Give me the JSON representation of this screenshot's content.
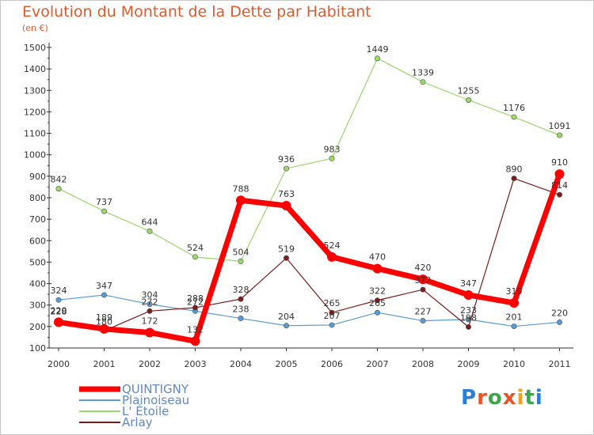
{
  "title": "Evolution du Montant de la Dette par Habitant",
  "unit": "(en €)",
  "logo": {
    "text": "Proxiti",
    "letter_colors": [
      "#2a7fd4",
      "#e8542a",
      "#3aa84a",
      "#e8542a",
      "#f2a020",
      "#3aa84a",
      "#2a7fd4"
    ]
  },
  "chart_data": {
    "type": "line",
    "x": [
      "2000",
      "2001",
      "2002",
      "2003",
      "2004",
      "2005",
      "2006",
      "2007",
      "2008",
      "2009",
      "2010",
      "2011"
    ],
    "ylim": [
      100,
      1500
    ],
    "yticks": [
      "100",
      "200",
      "300",
      "400",
      "500",
      "600",
      "700",
      "800",
      "900",
      "1000",
      "1100",
      "1200",
      "1300",
      "1400",
      "1500"
    ],
    "grid": false,
    "legend_position": "bottom-left",
    "series": [
      {
        "name": "Plainoiseau",
        "color": "#5b9bd5",
        "values": [
          324,
          347,
          304,
          272,
          238,
          204,
          207,
          265,
          227,
          233,
          201,
          220
        ],
        "labels": [
          "324",
          "347",
          "304",
          "272",
          "238",
          "204",
          "207",
          "265",
          "227",
          "233",
          "201",
          "220"
        ]
      },
      {
        "name": "L' Étoile",
        "color": "#9ad86a",
        "values": [
          842,
          737,
          644,
          524,
          504,
          936,
          983,
          1449,
          1339,
          1255,
          1176,
          1091
        ],
        "labels": [
          "842",
          "737",
          "644",
          "524",
          "504",
          "936",
          "983",
          "1449",
          "1339",
          "1255",
          "1176",
          "1091"
        ]
      },
      {
        "name": "Arlay",
        "color": "#7a1c1c",
        "values": [
          228,
          180,
          272,
          288,
          328,
          519,
          265,
          322,
          372,
          198,
          890,
          814
        ],
        "labels": [
          "228",
          "180",
          "272",
          "288",
          "328",
          "519",
          "265",
          "322",
          "372",
          "198",
          "890",
          "814"
        ]
      },
      {
        "name": "QUINTIGNY",
        "color": "#ff0000",
        "values": [
          220,
          189,
          172,
          132,
          788,
          763,
          524,
          470,
          420,
          347,
          310,
          910
        ],
        "labels": [
          "220",
          "189",
          "172",
          "132",
          "788",
          "763",
          "524",
          "470",
          "420",
          "347",
          "310",
          "910"
        ]
      }
    ],
    "legend_order": [
      "QUINTIGNY",
      "Plainoiseau",
      "L' Étoile",
      "Arlay"
    ]
  }
}
